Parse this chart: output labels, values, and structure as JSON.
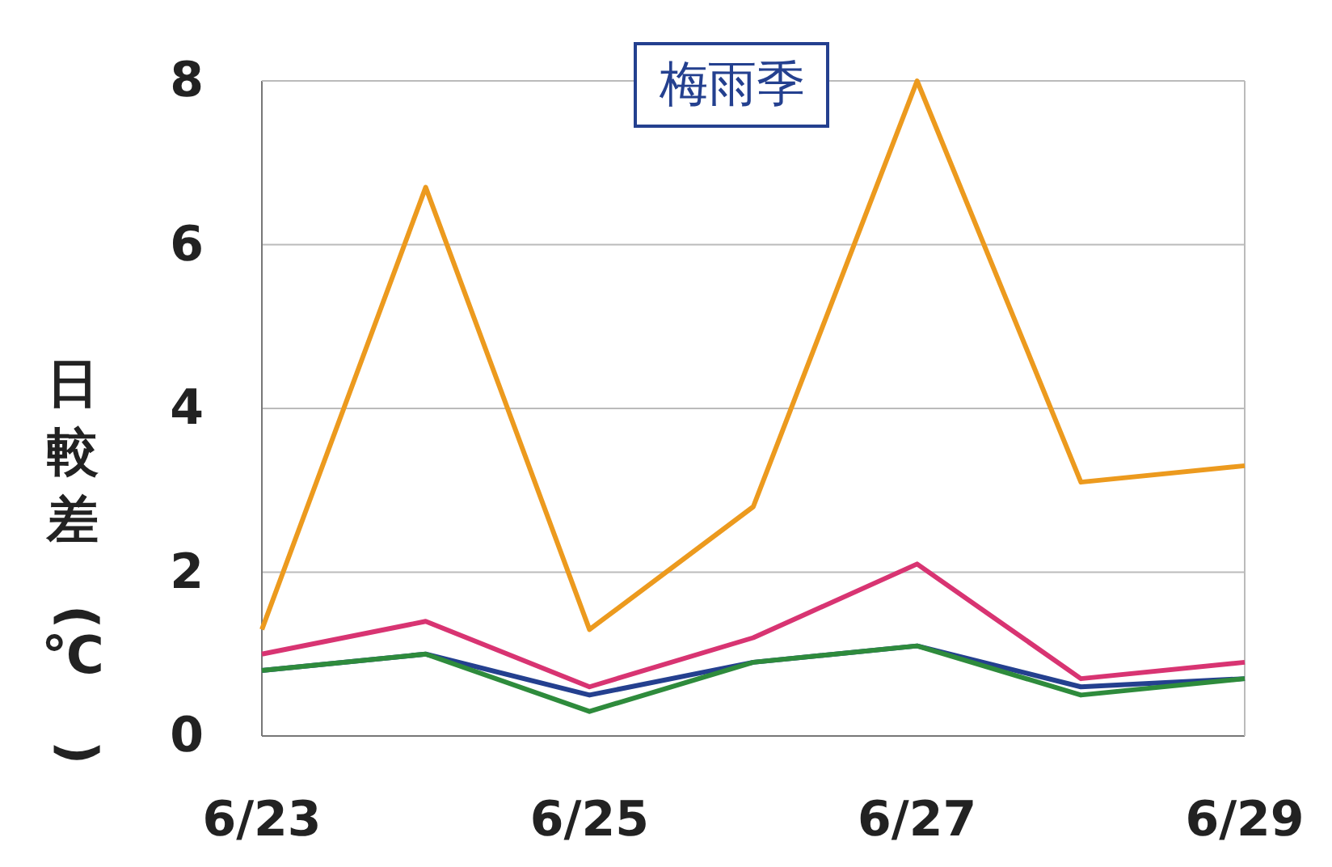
{
  "chart_data": {
    "type": "line",
    "title": "梅雨季",
    "ylabel": "日較差(℃)",
    "categories": [
      "6/23",
      null,
      "6/25",
      null,
      "6/27",
      null,
      "6/29"
    ],
    "series": [
      {
        "color": "#ec9a1e",
        "values": [
          1.3,
          6.7,
          1.3,
          2.8,
          8.0,
          3.1,
          3.3
        ]
      },
      {
        "color": "#d83472",
        "values": [
          1.0,
          1.4,
          0.6,
          1.2,
          2.1,
          0.7,
          0.9
        ]
      },
      {
        "color": "#24408f",
        "values": [
          0.8,
          1.0,
          0.5,
          0.9,
          1.1,
          0.6,
          0.7
        ]
      },
      {
        "color": "#2e8b3c",
        "values": [
          0.8,
          1.0,
          0.3,
          0.9,
          1.1,
          0.5,
          0.7
        ]
      }
    ],
    "ylim": [
      0,
      8
    ],
    "yticks": [
      0,
      2,
      4,
      6,
      8
    ],
    "grid": "y",
    "marker": "none",
    "line_style": "solid"
  }
}
